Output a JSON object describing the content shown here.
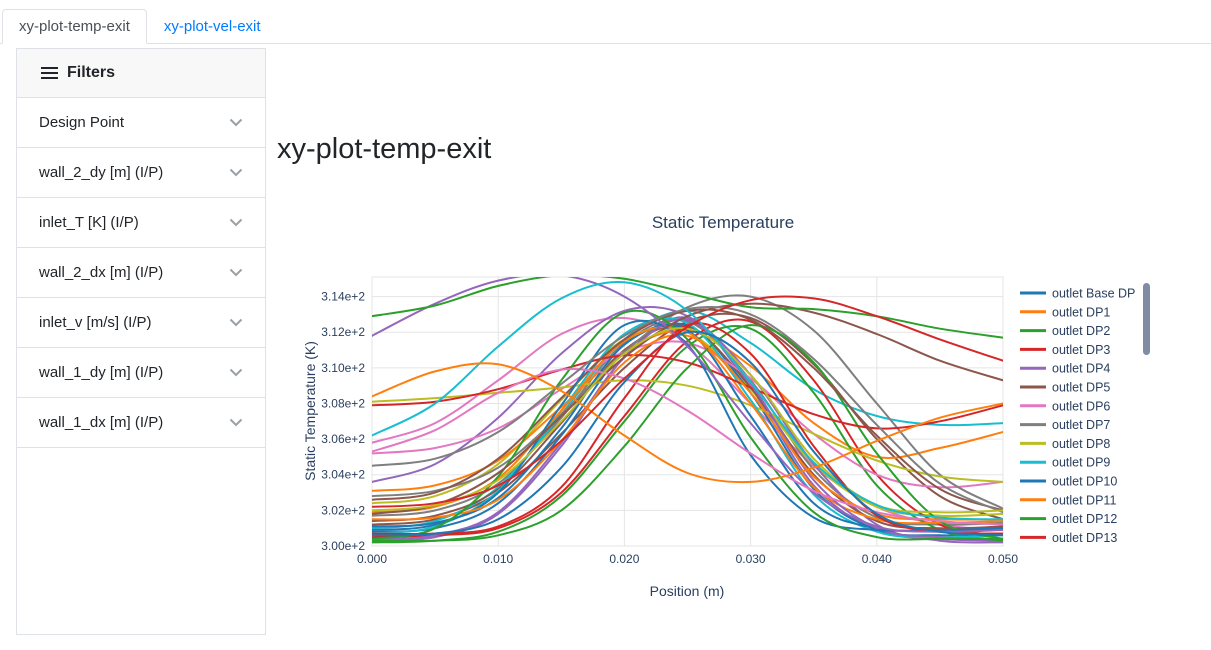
{
  "tabs": {
    "temp": {
      "label": "xy-plot-temp-exit",
      "active": true
    },
    "vel": {
      "label": "xy-plot-vel-exit",
      "active": false
    }
  },
  "sidebar": {
    "header": "Filters",
    "items": [
      {
        "label": "Design Point"
      },
      {
        "label": "wall_2_dy [m] (I/P)"
      },
      {
        "label": "inlet_T [K] (I/P)"
      },
      {
        "label": "wall_2_dx [m] (I/P)"
      },
      {
        "label": "inlet_v [m/s] (I/P)"
      },
      {
        "label": "wall_1_dy [m] (I/P)"
      },
      {
        "label": "wall_1_dx [m] (I/P)"
      }
    ]
  },
  "main": {
    "title": "xy-plot-temp-exit"
  },
  "colors": {
    "link_accent": "#007bff",
    "chart_text": "#2a3f5f",
    "gridline": "#e5e5e5",
    "legend_scrollbar": "#7f8ca6"
  },
  "chart_data": {
    "type": "line",
    "title": "Static Temperature",
    "xlabel": "Position (m)",
    "ylabel": "Static Temperature (K)",
    "xlim": [
      0,
      0.05
    ],
    "ylim": [
      300,
      315.1
    ],
    "grid": true,
    "legend_position": "right",
    "legend_scrollbar": true,
    "x_tick_values": [
      0,
      0.01,
      0.02,
      0.03,
      0.04,
      0.05
    ],
    "x_tick_labels": [
      "0.000",
      "0.010",
      "0.020",
      "0.030",
      "0.040",
      "0.050"
    ],
    "y_tick_values": [
      300,
      302,
      304,
      306,
      308,
      310,
      312,
      314
    ],
    "y_tick_labels": [
      "3.00e+2",
      "3.02e+2",
      "3.04e+2",
      "3.06e+2",
      "3.08e+2",
      "3.10e+2",
      "3.12e+2",
      "3.14e+2"
    ],
    "palette": [
      "#1f77b4",
      "#ff7f0e",
      "#2ca02c",
      "#d62728",
      "#9467bd",
      "#8c564b",
      "#e377c2",
      "#7f7f7f",
      "#bcbd22",
      "#17becf"
    ],
    "x": [
      0,
      0.005,
      0.01,
      0.015,
      0.02,
      0.025,
      0.03,
      0.035,
      0.04,
      0.045,
      0.05
    ],
    "series": [
      {
        "name": "outlet Base DP",
        "color": "#1f77b4",
        "in_legend": true,
        "y": [
          300.9,
          301.2,
          303.0,
          307.9,
          312.4,
          311.3,
          305.1,
          301.6,
          300.9,
          300.9,
          300.9
        ]
      },
      {
        "name": "outlet DP1",
        "color": "#ff7f0e",
        "in_legend": true,
        "y": [
          301.5,
          301.6,
          302.6,
          305.9,
          310.3,
          311.8,
          308.6,
          303.9,
          301.8,
          301.5,
          301.5
        ]
      },
      {
        "name": "outlet DP2",
        "color": "#2ca02c",
        "in_legend": true,
        "y": [
          300.4,
          301.0,
          303.9,
          309.3,
          313.1,
          311.6,
          306.1,
          301.9,
          300.5,
          300.4,
          300.4
        ]
      },
      {
        "name": "outlet DP3",
        "color": "#d62728",
        "in_legend": true,
        "y": [
          300.7,
          300.7,
          301.1,
          303.3,
          308.3,
          312.4,
          310.8,
          305.6,
          301.7,
          300.8,
          300.7
        ]
      },
      {
        "name": "outlet DP4",
        "color": "#9467bd",
        "in_legend": true,
        "y": [
          311.8,
          313.6,
          314.9,
          315.2,
          314.0,
          311.2,
          306.9,
          303.0,
          301.1,
          300.8,
          300.9
        ]
      },
      {
        "name": "outlet DP5",
        "color": "#8c564b",
        "in_legend": true,
        "y": [
          301.8,
          302.3,
          304.1,
          307.3,
          310.6,
          312.9,
          313.6,
          313.1,
          311.9,
          310.4,
          309.3
        ]
      },
      {
        "name": "outlet DP6",
        "color": "#e377c2",
        "in_legend": true,
        "y": [
          305.3,
          306.5,
          308.6,
          309.9,
          309.4,
          307.6,
          305.2,
          303.1,
          301.9,
          301.4,
          301.2
        ]
      },
      {
        "name": "outlet DP7",
        "color": "#7f7f7f",
        "in_legend": true,
        "y": [
          304.5,
          304.9,
          306.4,
          309.1,
          311.8,
          313.3,
          313.0,
          310.5,
          306.8,
          303.5,
          301.9
        ]
      },
      {
        "name": "outlet DP8",
        "color": "#bcbd22",
        "in_legend": true,
        "y": [
          302.0,
          302.3,
          303.7,
          307.0,
          310.8,
          312.2,
          309.6,
          304.9,
          302.3,
          301.9,
          302.0
        ]
      },
      {
        "name": "outlet DP9",
        "color": "#17becf",
        "in_legend": true,
        "y": [
          306.2,
          308.0,
          311.2,
          313.9,
          314.8,
          313.2,
          309.2,
          304.7,
          302.3,
          301.6,
          301.5
        ]
      },
      {
        "name": "outlet DP10",
        "color": "#1f77b4",
        "in_legend": true,
        "y": [
          300.6,
          300.7,
          301.5,
          304.4,
          309.2,
          312.0,
          310.3,
          305.3,
          301.8,
          300.8,
          300.6
        ]
      },
      {
        "name": "outlet DP11",
        "color": "#ff7f0e",
        "in_legend": true,
        "y": [
          308.4,
          309.8,
          310.2,
          308.7,
          306.2,
          304.1,
          303.6,
          304.4,
          305.9,
          307.2,
          308.0
        ]
      },
      {
        "name": "outlet DP12",
        "color": "#2ca02c",
        "in_legend": true,
        "y": [
          312.9,
          313.5,
          314.6,
          315.2,
          315.0,
          314.2,
          313.4,
          313.3,
          312.9,
          312.2,
          311.7
        ]
      },
      {
        "name": "outlet DP13",
        "color": "#d62728",
        "in_legend": true,
        "y": [
          302.2,
          302.4,
          303.4,
          305.9,
          309.4,
          312.3,
          313.8,
          313.9,
          312.9,
          311.6,
          310.4
        ]
      },
      {
        "name": "",
        "color": "#9467bd",
        "in_legend": false,
        "y": [
          300.3,
          300.5,
          301.8,
          305.6,
          310.6,
          312.8,
          308.9,
          303.4,
          300.9,
          300.4,
          300.3
        ]
      },
      {
        "name": "",
        "color": "#8c564b",
        "in_legend": false,
        "y": [
          301.2,
          301.5,
          303.0,
          306.3,
          310.0,
          312.6,
          312.8,
          310.2,
          306.0,
          302.8,
          301.5
        ]
      },
      {
        "name": "",
        "color": "#e377c2",
        "in_legend": false,
        "y": [
          305.8,
          306.9,
          309.3,
          311.9,
          312.8,
          311.4,
          308.0,
          304.5,
          302.2,
          301.2,
          300.9
        ]
      },
      {
        "name": "",
        "color": "#7f7f7f",
        "in_legend": false,
        "y": [
          301.7,
          302.0,
          303.5,
          307.2,
          311.4,
          312.6,
          309.3,
          304.3,
          301.6,
          301.2,
          301.3
        ]
      },
      {
        "name": "",
        "color": "#bcbd22",
        "in_legend": false,
        "y": [
          302.4,
          302.8,
          304.6,
          308.2,
          311.6,
          312.0,
          308.8,
          304.6,
          302.2,
          301.7,
          301.8
        ]
      },
      {
        "name": "",
        "color": "#17becf",
        "in_legend": false,
        "y": [
          301.0,
          301.4,
          303.3,
          307.4,
          311.6,
          313.2,
          311.4,
          308.8,
          307.3,
          306.8,
          306.9
        ]
      },
      {
        "name": "",
        "color": "#1f77b4",
        "in_legend": false,
        "y": [
          300.8,
          301.0,
          302.4,
          306.2,
          310.9,
          312.4,
          308.6,
          303.2,
          300.9,
          300.6,
          300.7
        ]
      },
      {
        "name": "",
        "color": "#ff7f0e",
        "in_legend": false,
        "y": [
          303.1,
          303.4,
          304.8,
          307.8,
          310.9,
          312.1,
          310.1,
          306.9,
          305.0,
          305.5,
          306.4
        ]
      },
      {
        "name": "",
        "color": "#2ca02c",
        "in_legend": false,
        "y": [
          300.2,
          300.3,
          300.8,
          302.8,
          307.0,
          311.2,
          312.2,
          308.6,
          303.4,
          300.9,
          300.3
        ]
      },
      {
        "name": "",
        "color": "#d62728",
        "in_legend": false,
        "y": [
          300.5,
          300.6,
          301.0,
          303.0,
          307.3,
          311.5,
          312.6,
          309.3,
          304.0,
          301.2,
          300.6
        ]
      },
      {
        "name": "",
        "color": "#9467bd",
        "in_legend": false,
        "y": [
          303.6,
          304.6,
          307.2,
          310.8,
          313.2,
          312.9,
          309.6,
          304.6,
          301.2,
          300.3,
          300.2
        ]
      },
      {
        "name": "",
        "color": "#8c564b",
        "in_legend": false,
        "y": [
          301.4,
          301.7,
          303.2,
          306.9,
          311.0,
          312.3,
          308.9,
          304.0,
          301.4,
          301.0,
          301.1
        ]
      },
      {
        "name": "",
        "color": "#e377c2",
        "in_legend": false,
        "y": [
          305.2,
          305.5,
          306.6,
          308.8,
          310.9,
          311.4,
          309.4,
          306.3,
          304.0,
          303.3,
          303.6
        ]
      },
      {
        "name": "",
        "color": "#7f7f7f",
        "in_legend": false,
        "y": [
          302.8,
          303.1,
          304.4,
          307.4,
          310.9,
          313.4,
          314.0,
          312.1,
          308.0,
          304.0,
          302.1
        ]
      },
      {
        "name": "",
        "color": "#bcbd22",
        "in_legend": false,
        "y": [
          308.1,
          308.3,
          308.6,
          308.9,
          309.3,
          309.0,
          307.9,
          306.3,
          304.8,
          303.9,
          303.6
        ]
      },
      {
        "name": "",
        "color": "#17becf",
        "in_legend": false,
        "y": [
          300.7,
          301.1,
          303.1,
          307.6,
          311.9,
          312.5,
          308.2,
          302.9,
          300.8,
          300.5,
          300.6
        ]
      },
      {
        "name": "",
        "color": "#1f77b4",
        "in_legend": false,
        "y": [
          301.1,
          301.3,
          302.7,
          306.6,
          311.3,
          312.1,
          307.3,
          302.4,
          301.0,
          300.9,
          301.0
        ]
      },
      {
        "name": "",
        "color": "#ff7f0e",
        "in_legend": false,
        "y": [
          301.9,
          302.2,
          303.8,
          307.6,
          311.5,
          312.0,
          308.0,
          303.3,
          301.5,
          301.3,
          301.4
        ]
      },
      {
        "name": "",
        "color": "#2ca02c",
        "in_legend": false,
        "y": [
          300.3,
          300.3,
          300.6,
          302.0,
          305.6,
          310.0,
          312.4,
          310.3,
          305.2,
          301.4,
          300.4
        ]
      },
      {
        "name": "",
        "color": "#d62728",
        "in_legend": false,
        "y": [
          307.9,
          308.1,
          308.8,
          309.9,
          310.7,
          310.3,
          308.9,
          307.4,
          306.6,
          307.0,
          307.9
        ]
      },
      {
        "name": "",
        "color": "#9467bd",
        "in_legend": false,
        "y": [
          300.4,
          300.6,
          301.9,
          305.8,
          310.6,
          312.7,
          309.1,
          303.7,
          301.0,
          300.5,
          300.4
        ]
      },
      {
        "name": "",
        "color": "#8c564b",
        "in_legend": false,
        "y": [
          302.6,
          303.0,
          304.9,
          308.3,
          311.6,
          313.2,
          312.7,
          310.0,
          306.2,
          303.2,
          302.0
        ]
      }
    ]
  }
}
